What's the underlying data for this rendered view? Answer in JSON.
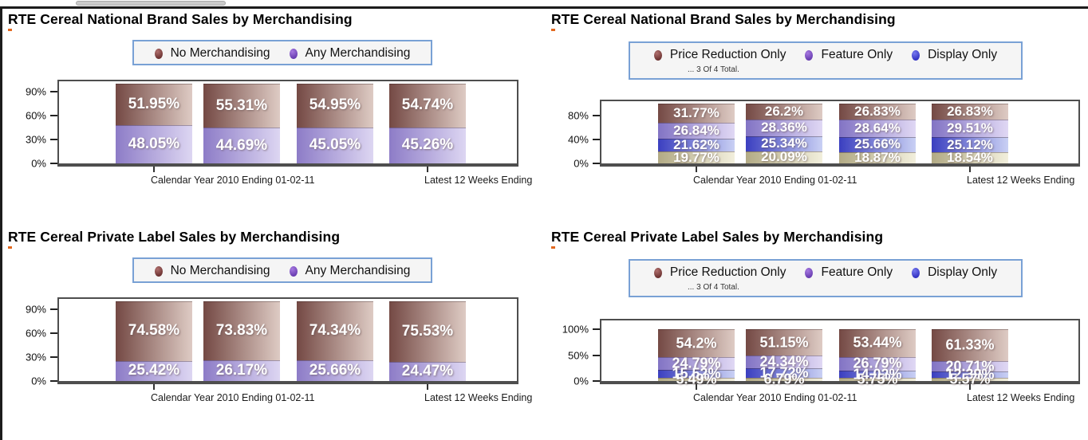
{
  "colors": {
    "legend_box_border": "#79a1d5",
    "legend_box_bg": "#f5f5f5",
    "axis": "#4e4e4e",
    "value_label_text": "#ffffff"
  },
  "shared": {
    "x_labels": [
      "Calendar Year 2010 Ending 01-02-11",
      "Latest 12 Weeks Ending"
    ]
  },
  "chart_data": [
    {
      "type": "bar",
      "stacked": true,
      "title": "RTE Cereal National Brand Sales by Merchandising",
      "legend_note": "",
      "y_ticks": [
        "90%",
        "60%",
        "30%",
        "0%"
      ],
      "ylim": [
        0,
        103
      ],
      "x_labels": [
        "Calendar Year 2010 Ending 01-02-11",
        "Latest 12 Weeks Ending"
      ],
      "categories": [
        "",
        "",
        "",
        ""
      ],
      "series": [
        {
          "name": "No Merchandising",
          "values": [
            51.95,
            55.31,
            54.95,
            54.74
          ],
          "labels": [
            "51.95%",
            "55.31%",
            "54.95%",
            "54.74%"
          ],
          "color_start": "#744944",
          "color_end": "#decbc4",
          "dot_light": "#b0706e",
          "dot_dark": "#6e3433"
        },
        {
          "name": "Any Merchandising",
          "values": [
            48.05,
            44.69,
            45.05,
            45.26
          ],
          "labels": [
            "48.05%",
            "44.69%",
            "45.05%",
            "45.26%"
          ],
          "color_start": "#8d7cc7",
          "color_end": "#ddd6f2",
          "dot_light": "#a678e0",
          "dot_dark": "#6a3fb2"
        }
      ]
    },
    {
      "type": "bar",
      "stacked": true,
      "title": "RTE Cereal National Brand Sales by Merchandising",
      "legend_note": "... 3 Of 4 Total.",
      "y_ticks": [
        "80%",
        "40%",
        "0%"
      ],
      "ylim": [
        0,
        104
      ],
      "x_labels": [
        "Calendar Year 2010 Ending 01-02-11",
        "Latest 12 Weeks Ending"
      ],
      "categories": [
        "",
        "",
        "",
        ""
      ],
      "series": [
        {
          "name": "Price Reduction Only",
          "values": [
            31.77,
            26.2,
            26.83,
            26.83
          ],
          "labels": [
            "31.77%",
            "26.2%",
            "26.83%",
            "26.83%"
          ],
          "color_start": "#744944",
          "color_end": "#decbc4",
          "dot_light": "#b0706e",
          "dot_dark": "#6e3433"
        },
        {
          "name": "Feature Only",
          "values": [
            26.84,
            28.36,
            28.64,
            29.51
          ],
          "labels": [
            "26.84%",
            "28.36%",
            "28.64%",
            "29.51%"
          ],
          "color_start": "#8273c4",
          "color_end": "#e0d8f4",
          "dot_light": "#a678e0",
          "dot_dark": "#6a3fb2"
        },
        {
          "name": "Display Only",
          "values": [
            21.62,
            25.34,
            25.66,
            25.12
          ],
          "labels": [
            "21.62%",
            "25.34%",
            "25.66%",
            "25.12%"
          ],
          "color_start": "#3b3fc0",
          "color_end": "#c9d0f4",
          "dot_light": "#7678ee",
          "dot_dark": "#3434c4"
        },
        {
          "name": "",
          "values": [
            19.77,
            20.09,
            18.87,
            18.54
          ],
          "labels": [
            "19.77%",
            "20.09%",
            "18.87%",
            "18.54%"
          ],
          "color_start": "#b2aa85",
          "color_end": "#f2efdc",
          "dot_light": "#d8d2b2",
          "dot_dark": "#9a9270"
        }
      ]
    },
    {
      "type": "bar",
      "stacked": true,
      "title": "RTE Cereal Private Label Sales by Merchandising",
      "legend_note": "",
      "y_ticks": [
        "90%",
        "60%",
        "30%",
        "0%"
      ],
      "ylim": [
        0,
        103
      ],
      "x_labels": [
        "Calendar Year 2010 Ending 01-02-11",
        "Latest 12 Weeks Ending"
      ],
      "categories": [
        "",
        "",
        "",
        ""
      ],
      "series": [
        {
          "name": "No Merchandising",
          "values": [
            74.58,
            73.83,
            74.34,
            75.53
          ],
          "labels": [
            "74.58%",
            "73.83%",
            "74.34%",
            "75.53%"
          ],
          "color_start": "#744944",
          "color_end": "#decbc4",
          "dot_light": "#b0706e",
          "dot_dark": "#6e3433"
        },
        {
          "name": "Any Merchandising",
          "values": [
            25.42,
            26.17,
            25.66,
            24.47
          ],
          "labels": [
            "25.42%",
            "26.17%",
            "25.66%",
            "24.47%"
          ],
          "color_start": "#8d7cc7",
          "color_end": "#ddd6f2",
          "dot_light": "#a678e0",
          "dot_dark": "#6a3fb2"
        }
      ]
    },
    {
      "type": "bar",
      "stacked": true,
      "title": "RTE Cereal Private Label Sales by Merchandising",
      "legend_note": "... 3 Of 4 Total.",
      "y_ticks": [
        "100%",
        "50%",
        "0%"
      ],
      "ylim": [
        0,
        117
      ],
      "x_labels": [
        "Calendar Year 2010 Ending 01-02-11",
        "Latest 12 Weeks Ending"
      ],
      "categories": [
        "",
        "",
        "",
        ""
      ],
      "series": [
        {
          "name": "Price Reduction Only",
          "values": [
            54.2,
            51.15,
            53.44,
            61.33
          ],
          "labels": [
            "54.2%",
            "51.15%",
            "53.44%",
            "61.33%"
          ],
          "color_start": "#744944",
          "color_end": "#decbc4",
          "dot_light": "#b0706e",
          "dot_dark": "#6e3433"
        },
        {
          "name": "Feature Only",
          "values": [
            24.79,
            24.34,
            26.79,
            20.71
          ],
          "labels": [
            "24.79%",
            "24.34%",
            "26.79%",
            "20.71%"
          ],
          "color_start": "#8273c4",
          "color_end": "#e0d8f4",
          "dot_light": "#a678e0",
          "dot_dark": "#6a3fb2"
        },
        {
          "name": "Display Only",
          "values": [
            15.52,
            17.72,
            14.02,
            12.39
          ],
          "labels": [
            "15.52%",
            "17.72%",
            "14.02%",
            "12.39%"
          ],
          "color_start": "#3b3fc0",
          "color_end": "#c9d0f4",
          "dot_light": "#7678ee",
          "dot_dark": "#3434c4"
        },
        {
          "name": "",
          "values": [
            5.49,
            6.79,
            5.75,
            5.57
          ],
          "labels": [
            "5.49%",
            "6.79%",
            "5.75%",
            "5.57%"
          ],
          "color_start": "#b2aa85",
          "color_end": "#f2efdc",
          "dot_light": "#d8d2b2",
          "dot_dark": "#9a9270"
        }
      ]
    }
  ]
}
